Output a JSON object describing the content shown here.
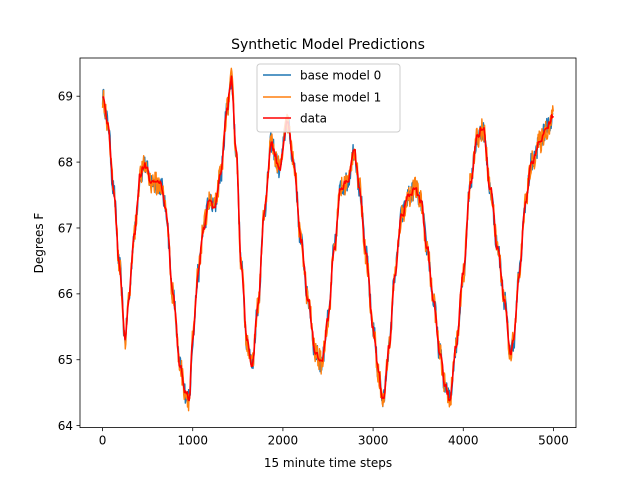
{
  "chart_data": {
    "type": "line",
    "title": "Synthetic Model Predictions",
    "xlabel": "15 minute time steps",
    "ylabel": "Degrees F",
    "xlim": [
      -250,
      5250
    ],
    "ylim": [
      63.97,
      69.58
    ],
    "x_ticks": [
      0,
      1000,
      2000,
      3000,
      4000,
      5000
    ],
    "x_tick_labels": [
      "0",
      "1000",
      "2000",
      "3000",
      "4000",
      "5000"
    ],
    "y_ticks": [
      64,
      65,
      66,
      67,
      68,
      69
    ],
    "y_tick_labels": [
      "64",
      "65",
      "66",
      "67",
      "68",
      "69"
    ],
    "legend_position": "top-center",
    "series": [
      {
        "name": "base model 0",
        "color": "#1f77b4",
        "noise": 0.16
      },
      {
        "name": "base model 1",
        "color": "#ff7f0e",
        "noise": 0.18
      },
      {
        "name": "data",
        "color": "#ff0000",
        "noise": 0.0
      }
    ],
    "anchor_points": [
      [
        0,
        69.0
      ],
      [
        60,
        68.6
      ],
      [
        120,
        67.6
      ],
      [
        190,
        66.4
      ],
      [
        250,
        65.3
      ],
      [
        290,
        65.9
      ],
      [
        350,
        66.9
      ],
      [
        420,
        67.8
      ],
      [
        470,
        67.95
      ],
      [
        540,
        67.7
      ],
      [
        650,
        67.65
      ],
      [
        700,
        67.3
      ],
      [
        780,
        66.0
      ],
      [
        860,
        64.9
      ],
      [
        920,
        64.5
      ],
      [
        960,
        64.4
      ],
      [
        1000,
        65.3
      ],
      [
        1060,
        66.3
      ],
      [
        1120,
        67.0
      ],
      [
        1180,
        67.4
      ],
      [
        1240,
        67.3
      ],
      [
        1310,
        67.8
      ],
      [
        1380,
        68.8
      ],
      [
        1430,
        69.25
      ],
      [
        1480,
        68.2
      ],
      [
        1540,
        66.4
      ],
      [
        1600,
        65.3
      ],
      [
        1660,
        64.9
      ],
      [
        1720,
        65.8
      ],
      [
        1800,
        67.3
      ],
      [
        1870,
        68.3
      ],
      [
        1960,
        67.9
      ],
      [
        2050,
        68.6
      ],
      [
        2120,
        68.0
      ],
      [
        2200,
        66.8
      ],
      [
        2280,
        65.9
      ],
      [
        2360,
        65.1
      ],
      [
        2430,
        64.95
      ],
      [
        2500,
        65.6
      ],
      [
        2570,
        66.7
      ],
      [
        2640,
        67.6
      ],
      [
        2720,
        67.7
      ],
      [
        2790,
        68.2
      ],
      [
        2850,
        67.6
      ],
      [
        2920,
        66.6
      ],
      [
        3000,
        65.5
      ],
      [
        3060,
        64.8
      ],
      [
        3110,
        64.35
      ],
      [
        3180,
        65.2
      ],
      [
        3240,
        66.3
      ],
      [
        3320,
        67.2
      ],
      [
        3400,
        67.5
      ],
      [
        3470,
        67.6
      ],
      [
        3530,
        67.4
      ],
      [
        3600,
        66.7
      ],
      [
        3670,
        65.9
      ],
      [
        3740,
        65.1
      ],
      [
        3800,
        64.6
      ],
      [
        3850,
        64.4
      ],
      [
        3920,
        65.2
      ],
      [
        4000,
        66.3
      ],
      [
        4080,
        67.7
      ],
      [
        4160,
        68.4
      ],
      [
        4220,
        68.5
      ],
      [
        4300,
        67.6
      ],
      [
        4380,
        66.7
      ],
      [
        4460,
        65.9
      ],
      [
        4520,
        65.1
      ],
      [
        4560,
        65.3
      ],
      [
        4620,
        66.3
      ],
      [
        4690,
        67.4
      ],
      [
        4760,
        68.0
      ],
      [
        4850,
        68.3
      ],
      [
        4920,
        68.5
      ],
      [
        5000,
        68.7
      ]
    ]
  }
}
